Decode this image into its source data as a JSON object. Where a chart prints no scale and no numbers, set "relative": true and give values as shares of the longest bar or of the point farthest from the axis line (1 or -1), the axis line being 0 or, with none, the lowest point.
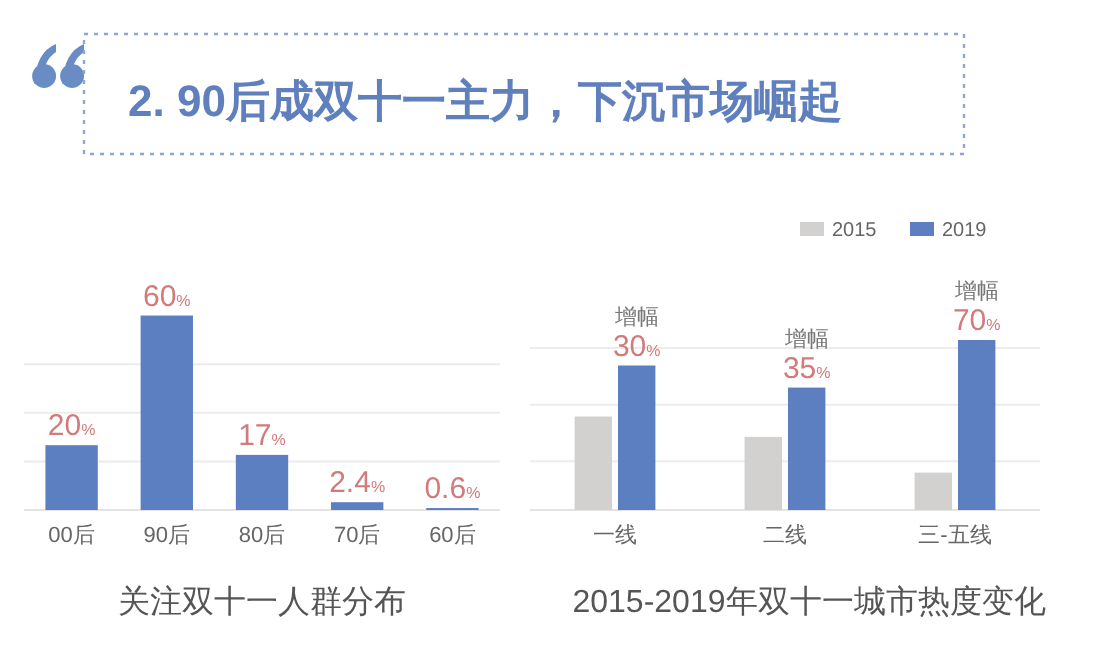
{
  "chart_data": [
    {
      "type": "other",
      "title": "2. 90后成双十一主力，下沉市场崛起"
    },
    {
      "type": "bar",
      "title": "关注双十一人群分布",
      "categories": [
        "00后",
        "90后",
        "80后",
        "70后",
        "60后"
      ],
      "values": [
        20,
        60,
        17,
        2.4,
        0.6
      ],
      "value_labels": [
        "20%",
        "60%",
        "17%",
        "2.4%",
        "0.6%"
      ],
      "color": "#5b7fc0",
      "yticks": [
        {
          "value": 0,
          "label": null
        },
        {
          "value": 15,
          "label": null
        },
        {
          "value": 30,
          "label": null
        },
        {
          "value": 45,
          "label": null
        }
      ],
      "grid": "y",
      "tick_labels": "x"
    },
    {
      "type": "bar",
      "title": "2015-2019年双十一城市热度变化",
      "relative": true,
      "categories": [
        "一线",
        "二线",
        "三-五线"
      ],
      "series": [
        {
          "name": "2015",
          "color": "#d3d0d0",
          "values": [
            0.55,
            0.43,
            0.22
          ]
        },
        {
          "name": "2019",
          "color": "#5b7fc0",
          "values": [
            0.85,
            0.72,
            1.0
          ]
        }
      ],
      "annotations": [
        {
          "text": "增幅 30%",
          "x": "一线",
          "y": 0.85
        },
        {
          "text": "增幅 35%",
          "x": "二线",
          "y": 0.72
        },
        {
          "text": "增幅 70%",
          "x": "三-五线",
          "y": 1.0
        }
      ],
      "grid": true,
      "legend": "top right"
    }
  ]
}
